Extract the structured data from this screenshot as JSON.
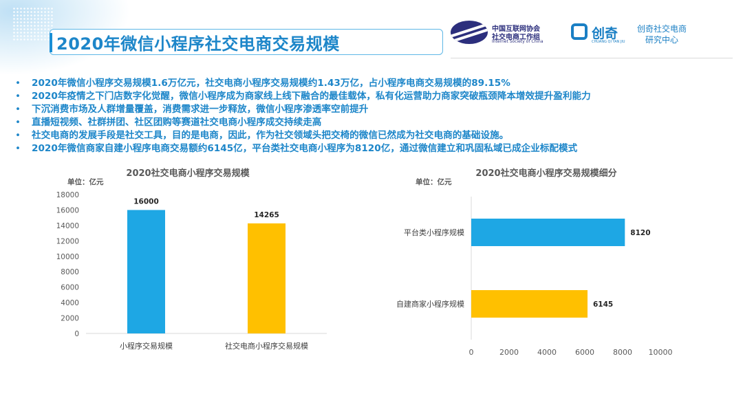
{
  "header": {
    "title": "2020年微信小程序社交电商交易规模",
    "logos": {
      "isc": {
        "line1": "中国互联网协会",
        "line2": "社交电商工作组",
        "line3": "Internet Society of China"
      },
      "chuangqi": {
        "name": "创奇",
        "sub": "CHUANG QI YAN JIU"
      },
      "center": {
        "line1": "创奇社交电商",
        "line2": "研究中心"
      }
    }
  },
  "bullets": [
    "2020年微信小程序交易规模1.6万亿元，社交电商小程序交易规模约1.43万亿，占小程序电商交易规模的89.15%",
    "2020年疫情之下门店数字化觉醒，微信小程序成为商家线上线下融合的最佳载体，私有化运营助力商家突破瓶颈降本增效提升盈利能力",
    "下沉消费市场及人群增量覆盖，消费需求进一步释放，微信小程序渗透率空前提升",
    "直播短视频、社群拼团、社区团购等赛道社交电商小程序成交持续走高",
    "社交电商的发展手段是社交工具，目的是电商，因此，作为社交领域头把交椅的微信已然成为社交电商的基础设施。",
    "2020年微信商家自建小程序电商交易额约6145亿，平台类社交电商小程序为8120亿，通过微信建立和巩固私域已成企业标配模式"
  ],
  "bullet_marker": "•",
  "chart_data": [
    {
      "type": "bar",
      "orientation": "vertical",
      "title": "2020社交电商小程序交易规模",
      "unit_label": "单位：亿元",
      "categories": [
        "小程序交易规模",
        "社交电商小程序交易规模"
      ],
      "values": [
        16000,
        14265
      ],
      "colors": [
        "#1ea7e4",
        "#ffc000"
      ],
      "ylim": [
        0,
        18000
      ],
      "yticks": [
        0,
        2000,
        4000,
        6000,
        8000,
        10000,
        12000,
        14000,
        16000,
        18000
      ],
      "grid": false
    },
    {
      "type": "bar",
      "orientation": "horizontal",
      "title": "2020社交电商小程序交易规模细分",
      "unit_label": "单位：亿元",
      "categories": [
        "平台类小程序规模",
        "自建商家小程序规模"
      ],
      "values": [
        8120,
        6145
      ],
      "colors": [
        "#1ea7e4",
        "#ffc000"
      ],
      "xlim": [
        0,
        10000
      ],
      "xticks": [
        0,
        2000,
        4000,
        6000,
        8000,
        10000
      ],
      "grid": false
    }
  ]
}
